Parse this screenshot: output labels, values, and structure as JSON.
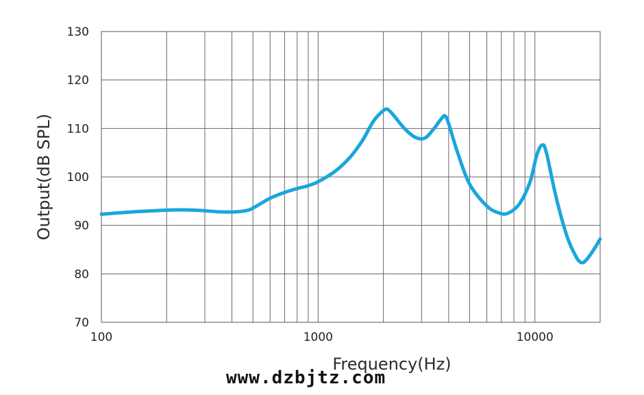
{
  "chart_data": {
    "type": "line",
    "title": "",
    "xlabel": "Frequency(Hz)",
    "ylabel": "Output(dB SPL)",
    "xscale": "log",
    "xlim": [
      100,
      20000
    ],
    "ylim": [
      70,
      130
    ],
    "grid": true,
    "y_ticks": [
      "70",
      "80",
      "90",
      "100",
      "110",
      "120",
      "130"
    ],
    "x_ticks": [
      {
        "value": 100,
        "label": "100"
      },
      {
        "value": 1000,
        "label": "1000"
      },
      {
        "value": 10000,
        "label": "10000"
      }
    ],
    "series": [
      {
        "color": "#1aa6dc",
        "points": [
          [
            100,
            92.3
          ],
          [
            130,
            92.7
          ],
          [
            170,
            93.0
          ],
          [
            220,
            93.2
          ],
          [
            280,
            93.1
          ],
          [
            350,
            92.8
          ],
          [
            420,
            92.8
          ],
          [
            480,
            93.2
          ],
          [
            520,
            94.0
          ],
          [
            600,
            95.6
          ],
          [
            700,
            96.8
          ],
          [
            800,
            97.6
          ],
          [
            900,
            98.2
          ],
          [
            1000,
            99.0
          ],
          [
            1200,
            101.2
          ],
          [
            1400,
            104.0
          ],
          [
            1600,
            107.5
          ],
          [
            1800,
            111.5
          ],
          [
            2000,
            113.7
          ],
          [
            2100,
            113.9
          ],
          [
            2250,
            112.5
          ],
          [
            2500,
            110.0
          ],
          [
            2800,
            108.2
          ],
          [
            3100,
            108.0
          ],
          [
            3400,
            109.8
          ],
          [
            3700,
            112.0
          ],
          [
            3850,
            112.6
          ],
          [
            4000,
            111.0
          ],
          [
            4400,
            105.0
          ],
          [
            5000,
            98.5
          ],
          [
            6000,
            94.0
          ],
          [
            6800,
            92.6
          ],
          [
            7500,
            92.5
          ],
          [
            8500,
            94.5
          ],
          [
            9500,
            99.0
          ],
          [
            10200,
            104.5
          ],
          [
            10800,
            106.6
          ],
          [
            11300,
            105.0
          ],
          [
            12500,
            96.0
          ],
          [
            14000,
            88.0
          ],
          [
            15500,
            83.5
          ],
          [
            16500,
            82.3
          ],
          [
            17500,
            83.2
          ],
          [
            19000,
            85.5
          ],
          [
            20000,
            87.2
          ]
        ]
      }
    ]
  },
  "watermark": "www.dzbjtz.com"
}
